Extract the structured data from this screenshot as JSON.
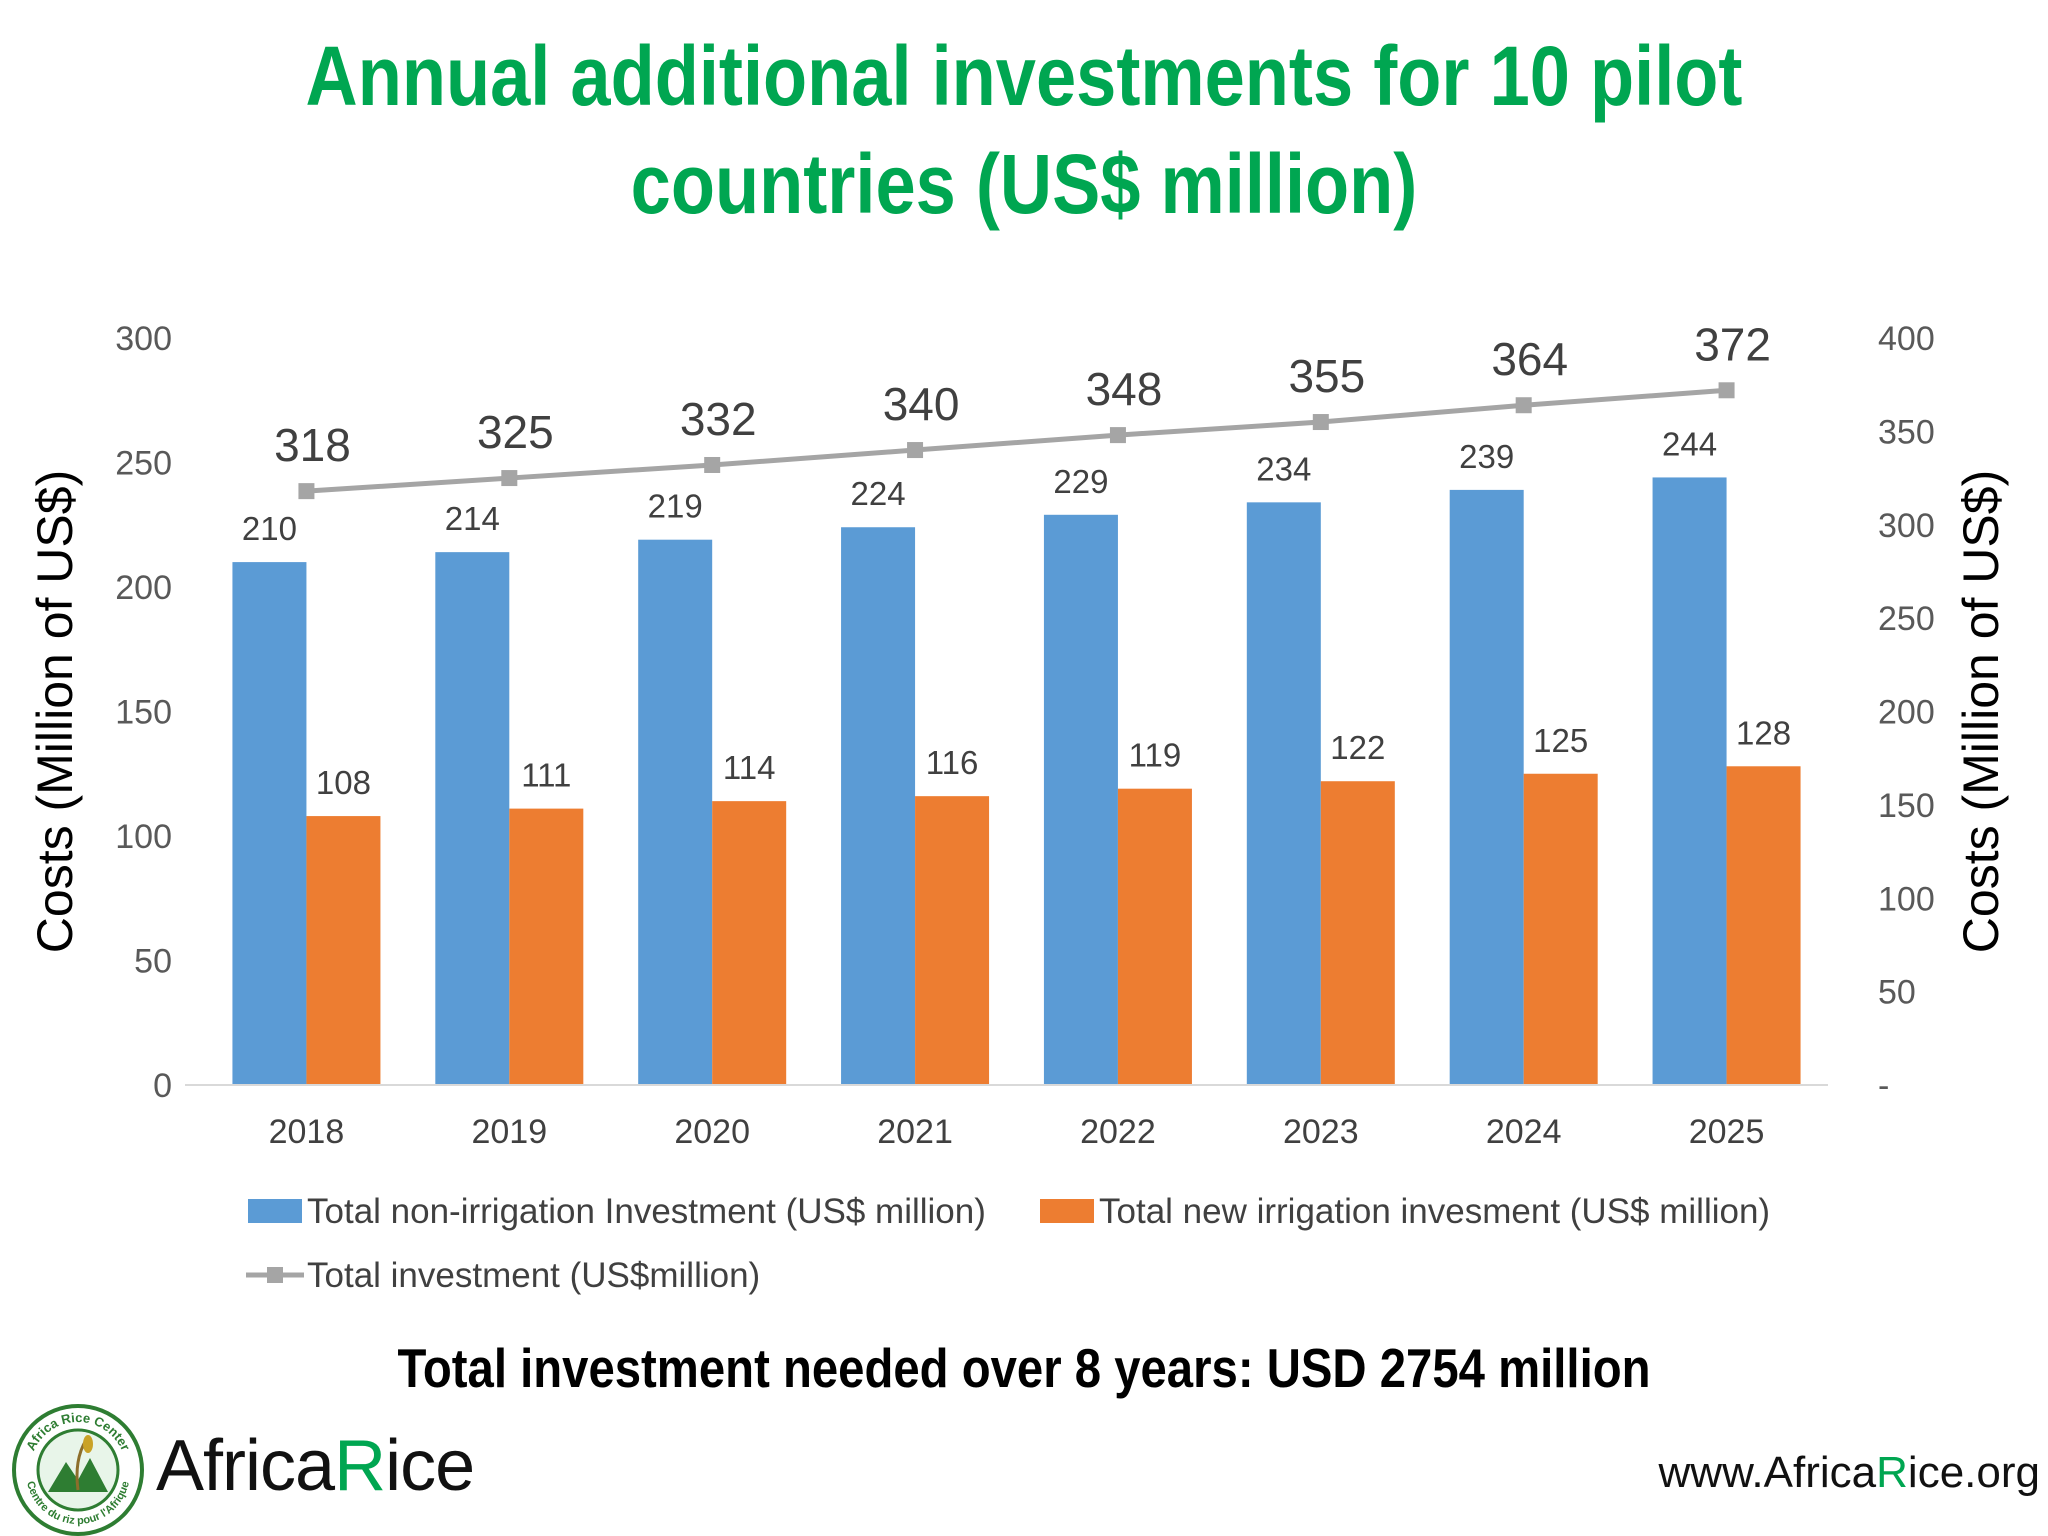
{
  "title": {
    "line1": "Annual additional investments for 10 pilot",
    "line2": "countries (US$ million)"
  },
  "colors": {
    "title": "#00a651",
    "bar_non_irrigation": "#5b9bd5",
    "bar_irrigation": "#ed7d31",
    "line_total": "#a5a5a5",
    "brand_green": "#00a651"
  },
  "chart_data": {
    "type": "bar",
    "categories": [
      "2018",
      "2019",
      "2020",
      "2021",
      "2022",
      "2023",
      "2024",
      "2025"
    ],
    "series": [
      {
        "name": "Total non-irrigation Investment (US$ million)",
        "type": "bar",
        "axis": "left",
        "color": "#5b9bd5",
        "values": [
          210,
          214,
          219,
          224,
          229,
          234,
          239,
          244
        ]
      },
      {
        "name": "Total new irrigation invesment (US$ million)",
        "type": "bar",
        "axis": "left",
        "color": "#ed7d31",
        "values": [
          108,
          111,
          114,
          116,
          119,
          122,
          125,
          128
        ]
      },
      {
        "name": "Total investment (US$million)",
        "type": "line",
        "axis": "right",
        "color": "#a5a5a5",
        "marker": "square",
        "values": [
          318,
          325,
          332,
          340,
          348,
          355,
          364,
          372
        ]
      }
    ],
    "y_left": {
      "label": "Costs (Million of US$)",
      "range": [
        0,
        300
      ],
      "ticks": [
        "0",
        "50",
        "100",
        "150",
        "200",
        "250",
        "300"
      ]
    },
    "y_right": {
      "label": "Costs (Million of US$)",
      "range": [
        0,
        400
      ],
      "ticks": [
        "-",
        "50",
        "100",
        "150",
        "200",
        "250",
        "300",
        "350",
        "400"
      ]
    },
    "grid": false,
    "legend_position": "bottom"
  },
  "footer": {
    "summary": "Total investment needed over 8 years: USD 2754 million",
    "brand_prefix": "Af",
    "brand_mid1": "r",
    "brand_mid2": "ica",
    "brand_r": "R",
    "brand_i": "i",
    "brand_ce": "ce",
    "seal_text_top": "Africa Rice Center",
    "seal_text_bottom": "Centre du riz pour l'Afrique",
    "url_prefix": "www.Af",
    "url_r": "r",
    "url_ica": "ica",
    "url_R": "R",
    "url_i": "i",
    "url_ce": "ce",
    "url_suffix": ".org"
  }
}
